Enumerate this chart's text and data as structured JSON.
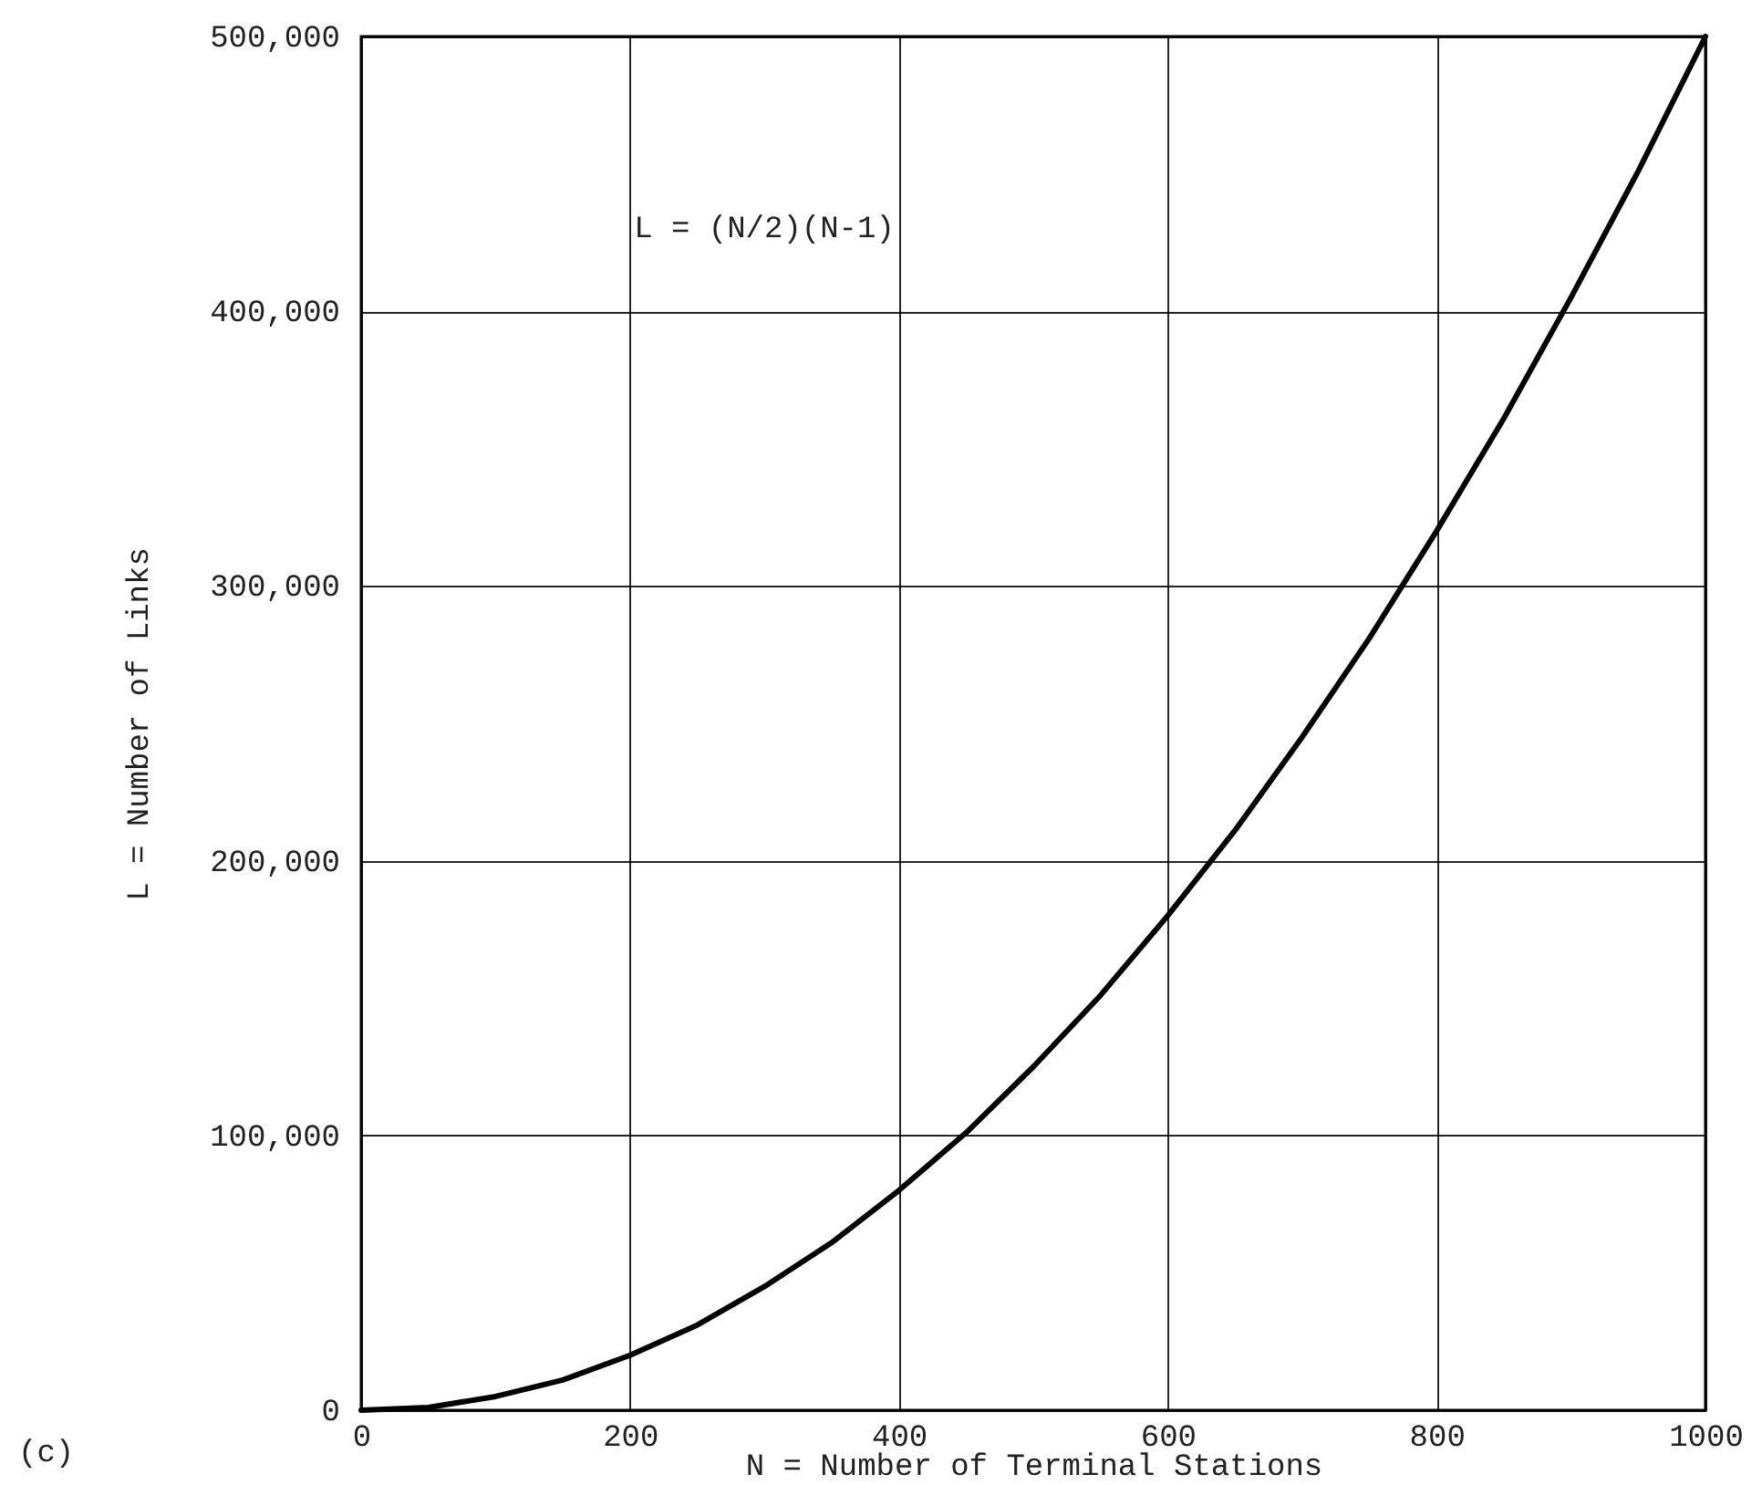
{
  "chart_data": {
    "type": "line",
    "xlabel": "N = Number of Terminal Stations",
    "ylabel": "L = Number of Links",
    "annotations": [
      "L = (N/2)(N-1)",
      "(c)"
    ],
    "x": [
      0,
      50,
      100,
      150,
      200,
      250,
      300,
      350,
      400,
      450,
      500,
      550,
      600,
      650,
      700,
      750,
      800,
      850,
      900,
      950,
      1000
    ],
    "series": [
      {
        "color": "#000000",
        "values": [
          0,
          1000,
          5000,
          11000,
          20000,
          31000,
          45000,
          61000,
          80000,
          101000,
          125000,
          151000,
          180000,
          211000,
          245000,
          281000,
          320000,
          361000,
          405000,
          451000,
          500000
        ]
      }
    ],
    "xlim": [
      0,
      1000
    ],
    "xticks": [
      0,
      200,
      400,
      600,
      800,
      1000
    ],
    "ylim": [
      0,
      500000
    ],
    "yticks": [
      0,
      {
        "value": 100000,
        "label": "100,000"
      },
      {
        "value": 200000,
        "label": "200,000"
      },
      {
        "value": 300000,
        "label": "300,000"
      },
      {
        "value": 400000,
        "label": "400,000"
      },
      {
        "value": 500000,
        "label": "500,000"
      }
    ],
    "grid": true,
    "marker": "none",
    "line_style": "solid"
  }
}
